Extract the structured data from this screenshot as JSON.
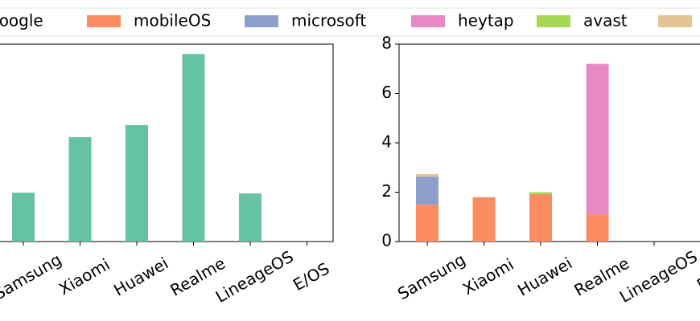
{
  "chart_data": [
    {
      "type": "bar",
      "categories": [
        "Samsung",
        "Xiaomi",
        "Huawei",
        "Realme",
        "LineageOS",
        "E/OS"
      ],
      "series": [
        {
          "name": "google",
          "color": "#66c2a5",
          "values": [
            1.98,
            4.23,
            4.72,
            7.6,
            1.95,
            0
          ]
        }
      ],
      "ylim": [
        0,
        8
      ]
    },
    {
      "type": "stacked_bar",
      "categories": [
        "Samsung",
        "Xiaomi",
        "Huawei",
        "Realme",
        "LineageOS",
        "E/OS"
      ],
      "series": [
        {
          "name": "mobileOS",
          "color": "#fc8d62",
          "values": [
            1.5,
            1.8,
            1.92,
            1.1,
            0,
            0
          ]
        },
        {
          "name": "microsoft",
          "color": "#8da0cb",
          "values": [
            1.13,
            0,
            0,
            0,
            0,
            0
          ]
        },
        {
          "name": "heytap",
          "color": "#e78ac3",
          "values": [
            0,
            0,
            0,
            6.1,
            0,
            0
          ]
        },
        {
          "name": "avast",
          "color": "#a6d854",
          "values": [
            0,
            0,
            0.08,
            0,
            0,
            0
          ]
        },
        {
          "name": null,
          "color": "#e5c494",
          "values": [
            0.1,
            0,
            0,
            0,
            0,
            0
          ]
        }
      ],
      "ylim": [
        0,
        8
      ],
      "yticks": [
        0,
        2,
        4,
        6,
        8
      ]
    }
  ]
}
